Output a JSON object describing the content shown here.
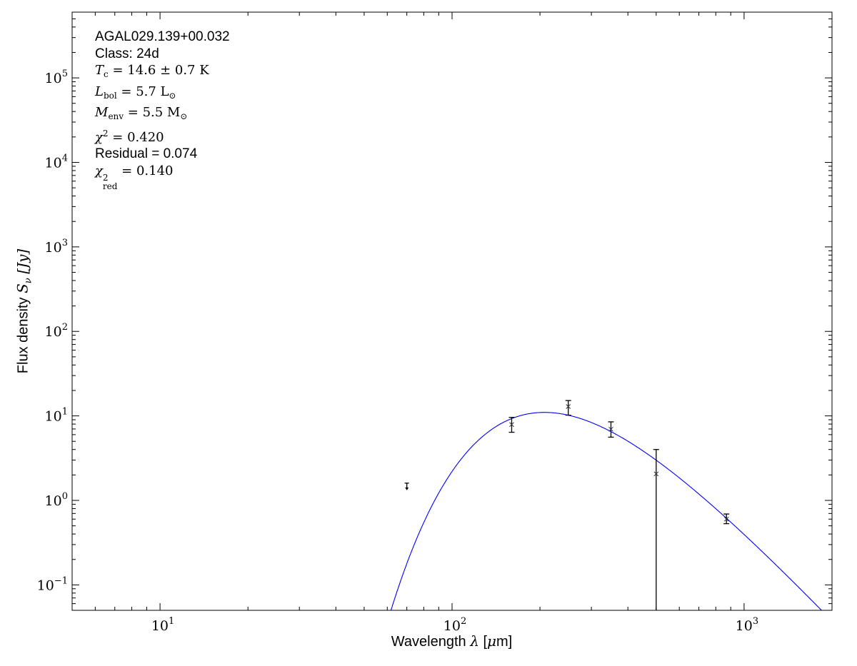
{
  "chart_data": {
    "type": "scatter",
    "xscale": "log",
    "yscale": "log",
    "xlim": [
      5,
      2000
    ],
    "ylim": [
      0.05,
      600000
    ],
    "grid": false,
    "xlabel": {
      "text": "Wavelength",
      "symbol": "λ",
      "unit_pre": "[",
      "unit_mu": "μ",
      "unit_post": "m]"
    },
    "ylabel": {
      "text": "Flux density",
      "symbol": "S",
      "sub": "ν",
      "unit": "[Jy]"
    },
    "xticks": [
      {
        "base": "10",
        "exp": "1",
        "value": 10
      },
      {
        "base": "10",
        "exp": "2",
        "value": 100
      },
      {
        "base": "10",
        "exp": "3",
        "value": 1000
      }
    ],
    "yticks": [
      {
        "base": "10",
        "exp": "−1",
        "value": 0.1
      },
      {
        "base": "10",
        "exp": "0",
        "value": 1
      },
      {
        "base": "10",
        "exp": "1",
        "value": 10
      },
      {
        "base": "10",
        "exp": "2",
        "value": 100
      },
      {
        "base": "10",
        "exp": "3",
        "value": 1000
      },
      {
        "base": "10",
        "exp": "4",
        "value": 10000
      },
      {
        "base": "10",
        "exp": "5",
        "value": 100000
      }
    ],
    "points": [
      {
        "wavelength": 70,
        "flux": 1.6,
        "upper_limit": true
      },
      {
        "wavelength": 160,
        "flux": 7.9,
        "err_hi": 9.6,
        "err_lo": 6.4
      },
      {
        "wavelength": 250,
        "flux": 12.9,
        "err_hi": 15.2,
        "err_lo": 10.2
      },
      {
        "wavelength": 350,
        "flux": 6.95,
        "err_hi": 8.5,
        "err_lo": 5.6
      },
      {
        "wavelength": 500,
        "flux": 2.06,
        "err_hi": 4.0,
        "err_lo": 0
      },
      {
        "wavelength": 870,
        "flux": 0.6,
        "err_hi": 0.69,
        "err_lo": 0.53
      }
    ],
    "model": {
      "type": "modified blackbody",
      "temperature_K": 14.6,
      "peak_wavelength": 210,
      "peak_flux": 11.0,
      "color": "#0000ff"
    },
    "marker_color": "#000000"
  },
  "annotation": {
    "source": "AGAL029.139+00.032",
    "class": "Class: 24d",
    "tc": {
      "sym": "T",
      "sub": "c",
      "rest": " = 14.6 ± 0.7 K"
    },
    "lbol": {
      "sym": "L",
      "sub": "bol",
      "rest": " = 5.7 L",
      "rest_sub": "⊙"
    },
    "menv": {
      "sym": "M",
      "sub": "env",
      "rest": " = 5.5 M",
      "rest_sub": "⊙"
    },
    "chi2": {
      "sym": "χ",
      "sup": "2",
      "rest": " = 0.420"
    },
    "residual": "Residual = 0.074",
    "chi2red": {
      "sym": "χ",
      "sup": "2",
      "sub": "red",
      "rest": " = 0.140"
    }
  }
}
